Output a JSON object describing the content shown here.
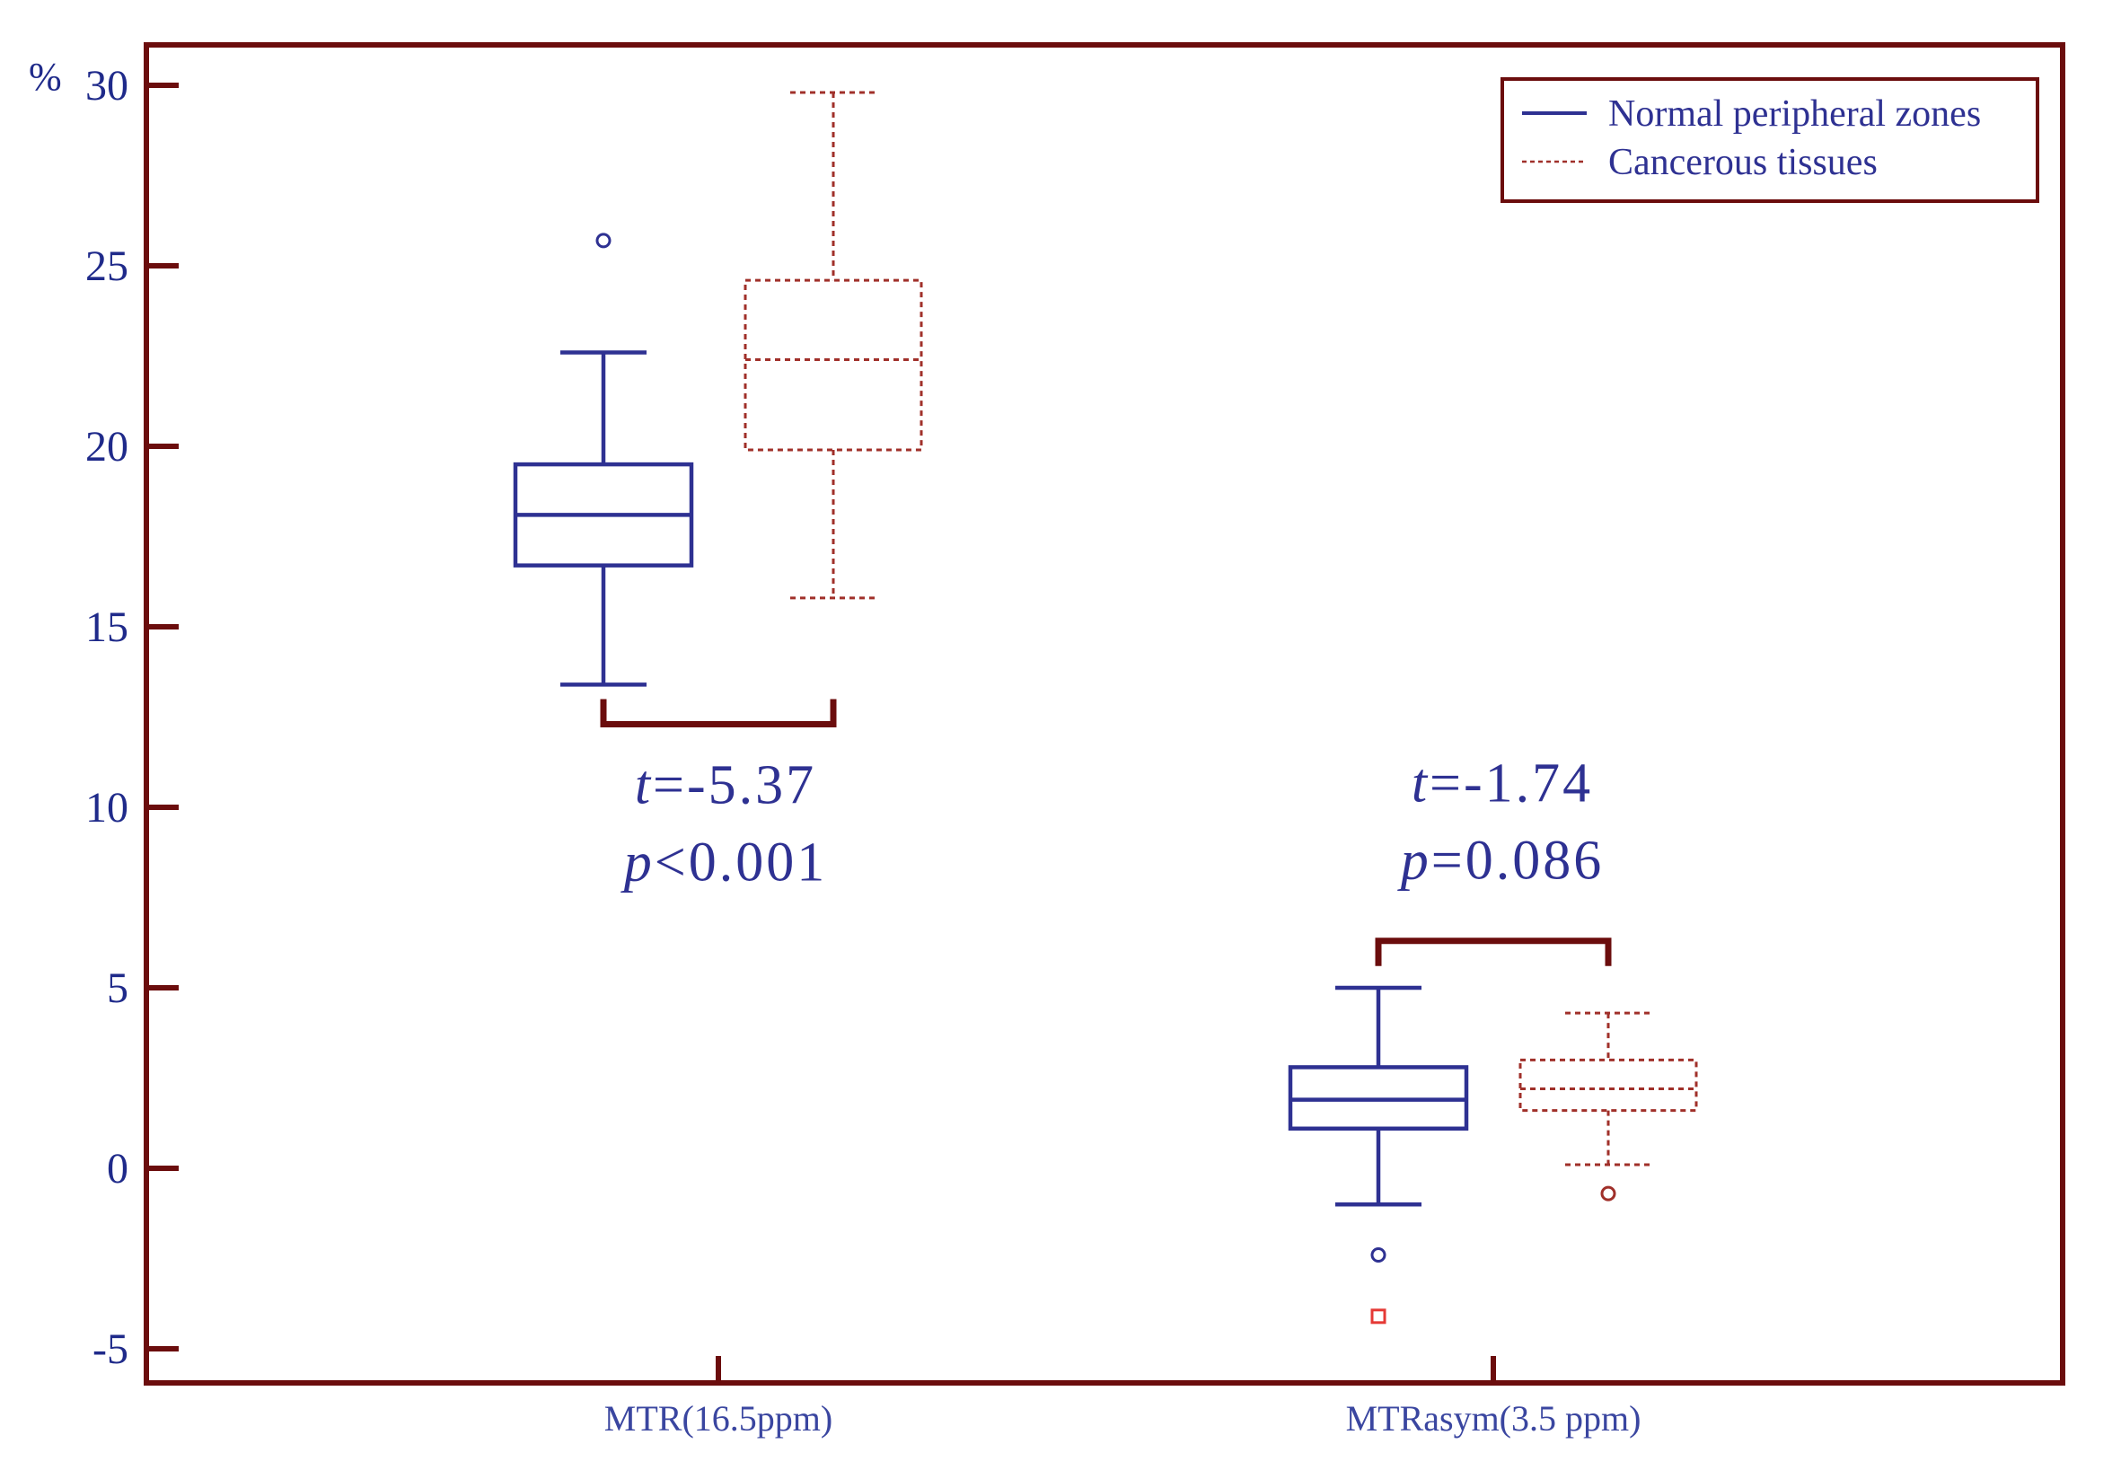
{
  "chart_data": {
    "type": "box",
    "title": "",
    "xlabel": "",
    "ylabel": "%",
    "ylim": [
      -5,
      30
    ],
    "yticks": [
      -5,
      0,
      5,
      10,
      15,
      20,
      25,
      30
    ],
    "ytick_labels": [
      "-5",
      "0",
      "5",
      "10",
      "15",
      "20",
      "25",
      "30"
    ],
    "categories": [
      "MTR(16.5ppm)",
      "MTRasym(3.5 ppm)"
    ],
    "legend": {
      "placement": "top-right"
    },
    "series": [
      {
        "name": "Normal peripheral zones",
        "color": "#2e3192",
        "line_style": "solid",
        "boxes": [
          {
            "whisker_low": 13.4,
            "q1": 16.7,
            "median": 18.1,
            "q3": 19.5,
            "whisker_high": 22.6,
            "outliers": [
              25.7
            ]
          },
          {
            "whisker_low": -1.0,
            "q1": 1.1,
            "median": 1.9,
            "q3": 2.8,
            "whisker_high": 5.0,
            "outliers": [
              -2.4
            ]
          }
        ]
      },
      {
        "name": "Cancerous tissues",
        "color": "#a0302a",
        "line_style": "dashed",
        "boxes": [
          {
            "whisker_low": 15.8,
            "q1": 19.9,
            "median": 22.4,
            "q3": 24.6,
            "whisker_high": 29.8,
            "outliers": []
          },
          {
            "whisker_low": 0.1,
            "q1": 1.6,
            "median": 2.2,
            "q3": 3.0,
            "whisker_high": 4.3,
            "outliers": [
              -0.7
            ]
          }
        ]
      }
    ],
    "extra_markers": [
      {
        "category_index": 1,
        "series_index": 0,
        "value": -4.1,
        "shape": "square",
        "color": "#e53935"
      }
    ],
    "annotations": [
      {
        "category_index": 0,
        "bracket_value": 12.3,
        "lines": [
          {
            "italic": "t",
            "rest": "=-5.37"
          },
          {
            "italic": "p",
            "rest": "<0.001"
          }
        ]
      },
      {
        "category_index": 1,
        "bracket_value": 6.3,
        "lines": [
          {
            "italic": "t",
            "rest": "=-1.74"
          },
          {
            "italic": "p",
            "rest": "=0.086"
          }
        ]
      }
    ],
    "colors": {
      "axis": "#6b0d0d",
      "tick_label": "#1f2a8a",
      "annotation": "#2e3192",
      "category_label": "#3a46a0"
    }
  }
}
